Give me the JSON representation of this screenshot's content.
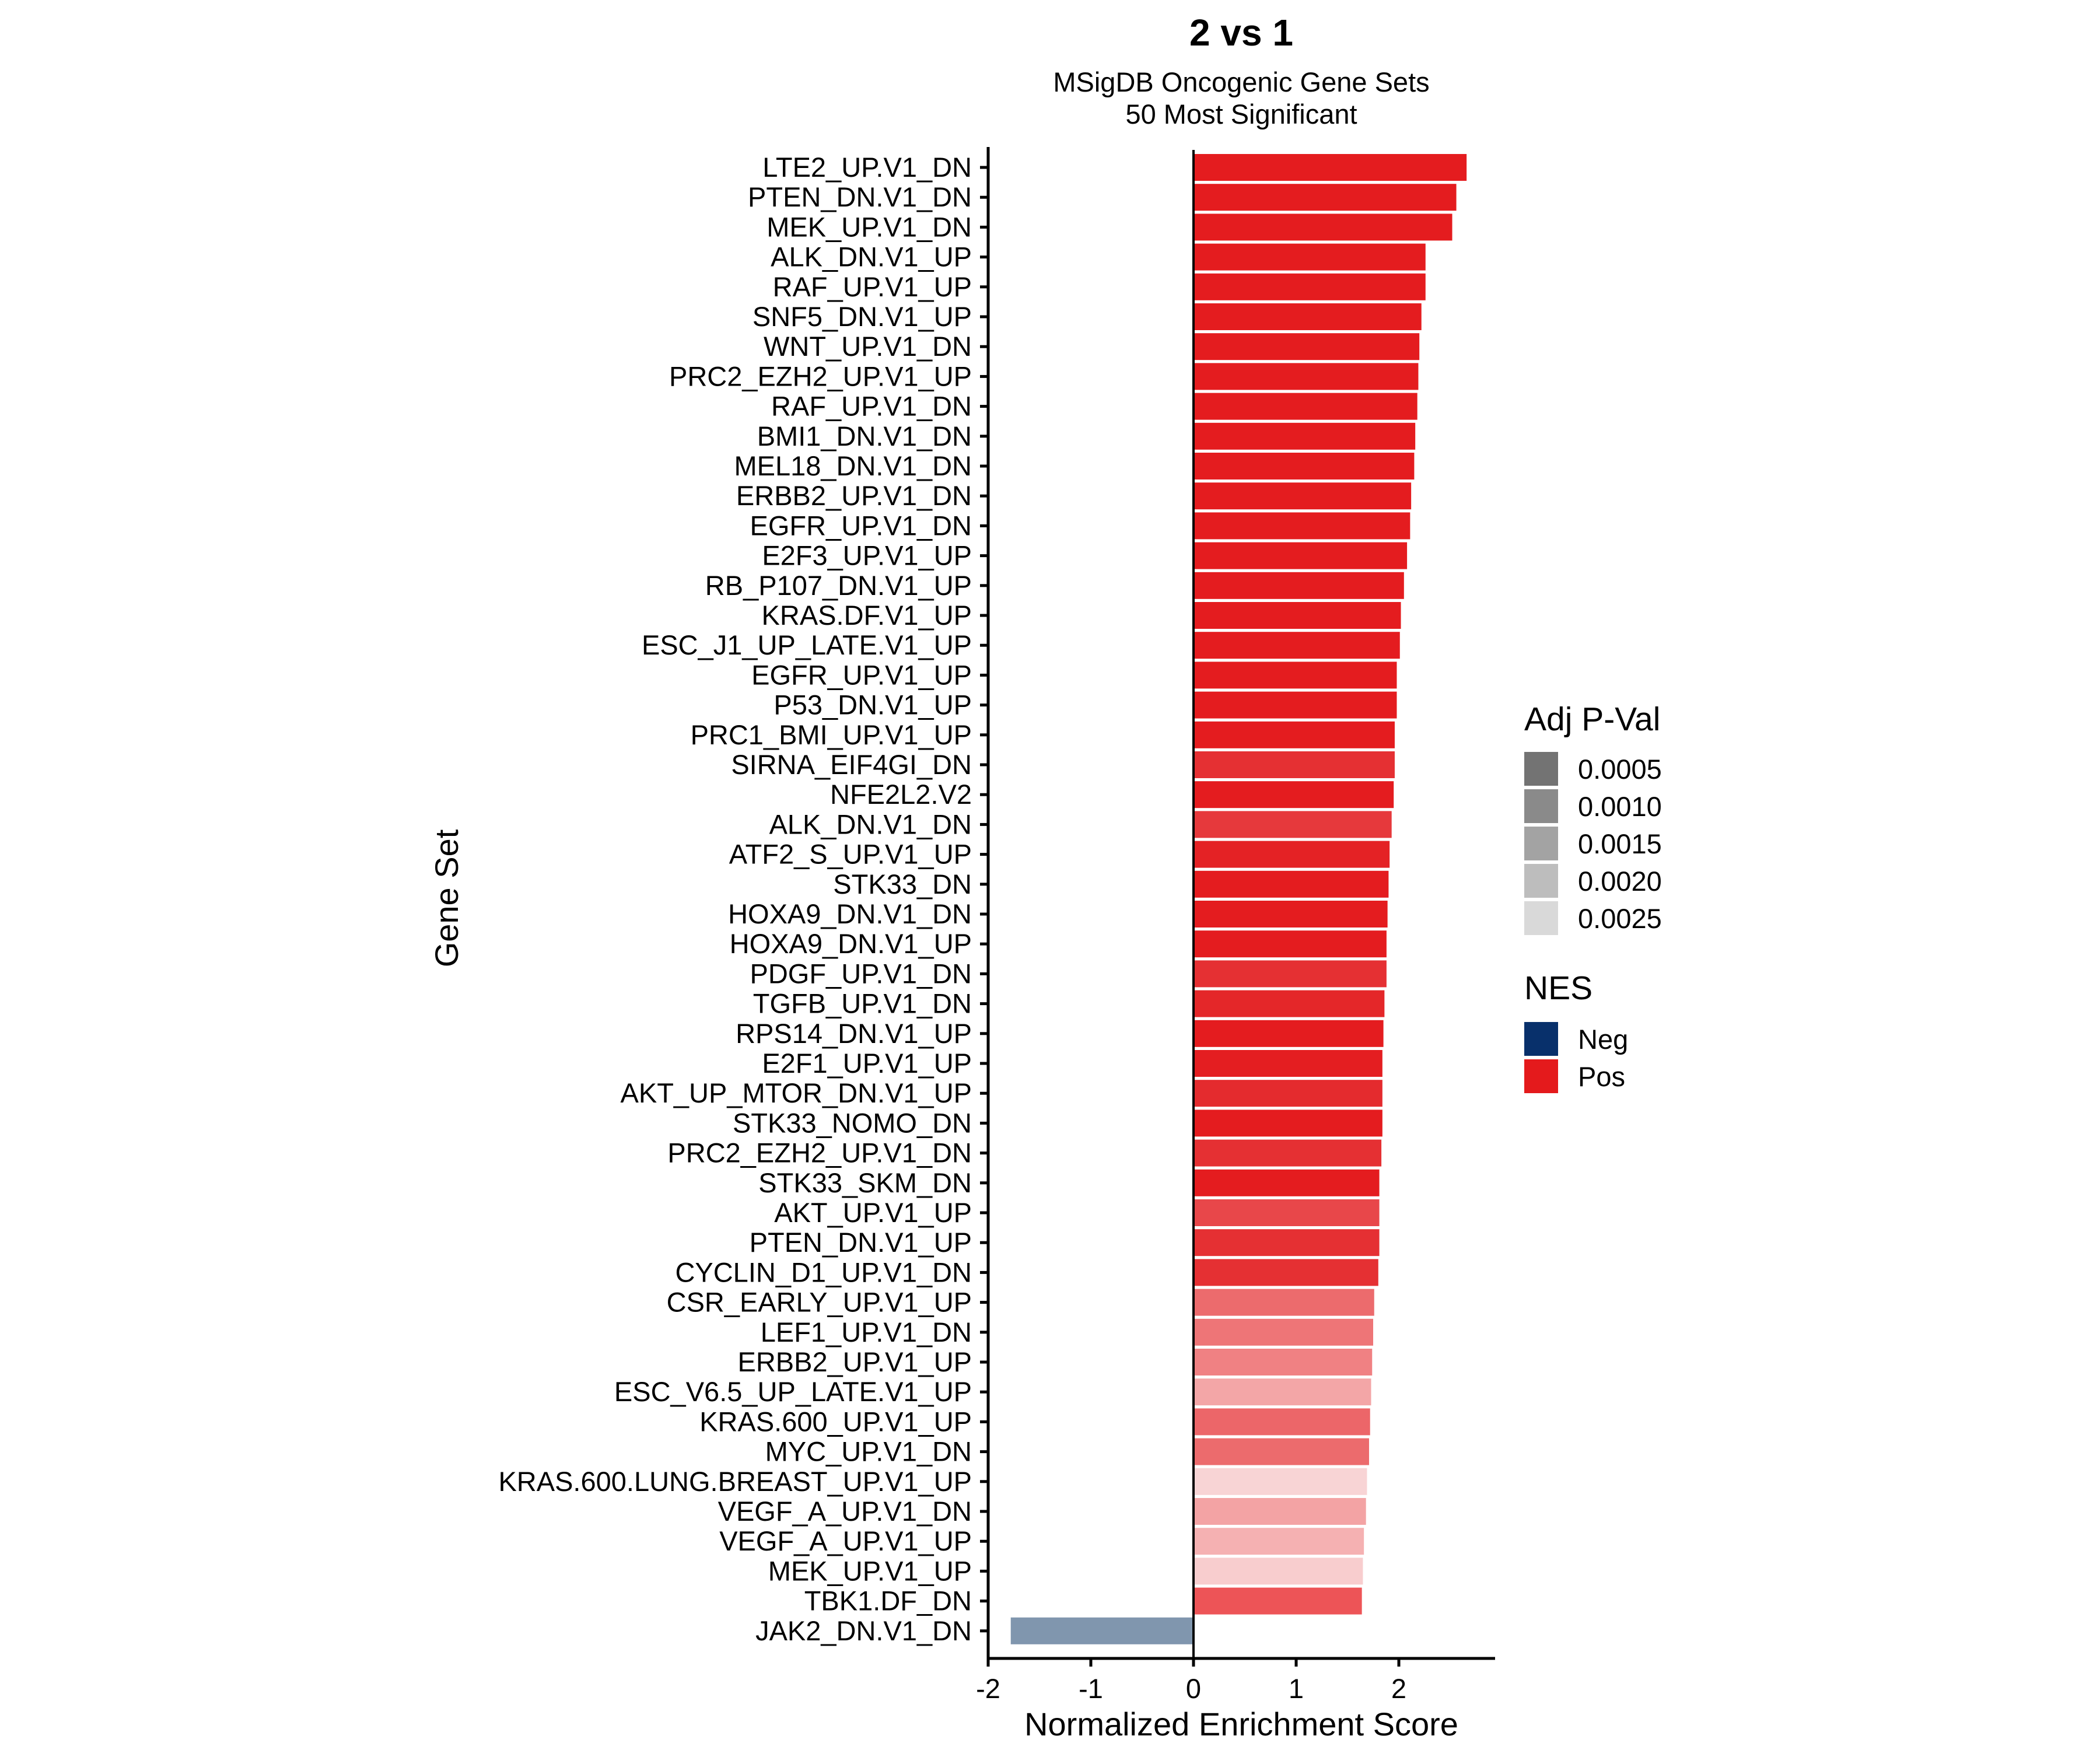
{
  "chart_data": {
    "type": "bar",
    "orientation": "horizontal",
    "title": "2 vs 1",
    "subtitle": [
      "MSigDB Oncogenic Gene Sets",
      "50 Most Significant"
    ],
    "xlabel": "Normalized Enrichment Score",
    "ylabel": "Gene Set",
    "xlim": [
      -2,
      2.9
    ],
    "xticks": [
      -2,
      -1,
      0,
      1,
      2
    ],
    "xtick_labels": [
      "-2",
      "-1",
      "0",
      "1",
      "2"
    ],
    "grid": false,
    "categories": [
      "LTE2_UP.V1_DN",
      "PTEN_DN.V1_DN",
      "MEK_UP.V1_DN",
      "ALK_DN.V1_UP",
      "RAF_UP.V1_UP",
      "SNF5_DN.V1_UP",
      "WNT_UP.V1_DN",
      "PRC2_EZH2_UP.V1_UP",
      "RAF_UP.V1_DN",
      "BMI1_DN.V1_DN",
      "MEL18_DN.V1_DN",
      "ERBB2_UP.V1_DN",
      "EGFR_UP.V1_DN",
      "E2F3_UP.V1_UP",
      "RB_P107_DN.V1_UP",
      "KRAS.DF.V1_UP",
      "ESC_J1_UP_LATE.V1_UP",
      "EGFR_UP.V1_UP",
      "P53_DN.V1_UP",
      "PRC1_BMI_UP.V1_UP",
      "SIRNA_EIF4GI_DN",
      "NFE2L2.V2",
      "ALK_DN.V1_DN",
      "ATF2_S_UP.V1_UP",
      "STK33_DN",
      "HOXA9_DN.V1_DN",
      "HOXA9_DN.V1_UP",
      "PDGF_UP.V1_DN",
      "TGFB_UP.V1_DN",
      "RPS14_DN.V1_UP",
      "E2F1_UP.V1_UP",
      "AKT_UP_MTOR_DN.V1_UP",
      "STK33_NOMO_DN",
      "PRC2_EZH2_UP.V1_DN",
      "STK33_SKM_DN",
      "AKT_UP.V1_UP",
      "PTEN_DN.V1_UP",
      "CYCLIN_D1_UP.V1_DN",
      "CSR_EARLY_UP.V1_UP",
      "LEF1_UP.V1_DN",
      "ERBB2_UP.V1_UP",
      "ESC_V6.5_UP_LATE.V1_UP",
      "KRAS.600_UP.V1_UP",
      "MYC_UP.V1_DN",
      "KRAS.600.LUNG.BREAST_UP.V1_UP",
      "VEGF_A_UP.V1_DN",
      "VEGF_A_UP.V1_UP",
      "MEK_UP.V1_UP",
      "TBK1.DF_DN",
      "JAK2_DN.V1_DN"
    ],
    "values": [
      2.66,
      2.56,
      2.52,
      2.26,
      2.26,
      2.22,
      2.2,
      2.19,
      2.18,
      2.16,
      2.15,
      2.12,
      2.11,
      2.08,
      2.05,
      2.02,
      2.01,
      1.98,
      1.98,
      1.96,
      1.96,
      1.95,
      1.93,
      1.91,
      1.9,
      1.89,
      1.88,
      1.88,
      1.86,
      1.85,
      1.84,
      1.84,
      1.84,
      1.83,
      1.81,
      1.81,
      1.81,
      1.8,
      1.76,
      1.75,
      1.74,
      1.73,
      1.72,
      1.71,
      1.69,
      1.68,
      1.66,
      1.65,
      1.64,
      -1.78
    ],
    "bar_colors": [
      "#e41c1f",
      "#e41c1f",
      "#e41c1f",
      "#e41c1f",
      "#e41c1f",
      "#e41c1f",
      "#e41c1f",
      "#e41c1f",
      "#e41c1f",
      "#e41c1f",
      "#e41c1f",
      "#e41c1f",
      "#e41c1f",
      "#e41c1f",
      "#e41c1f",
      "#e41c1f",
      "#e41c1f",
      "#e41c1f",
      "#e41c1f",
      "#e41c1f",
      "#e53033",
      "#e41c1f",
      "#e6393c",
      "#e42225",
      "#e41c1f",
      "#e41c1f",
      "#e41c1f",
      "#e53033",
      "#e42729",
      "#e41c1f",
      "#e41e21",
      "#e42b2e",
      "#e41c1f",
      "#e53033",
      "#e41c1f",
      "#e8474a",
      "#e53033",
      "#e53033",
      "#ec6b6d",
      "#ee7577",
      "#f08183",
      "#f3a6a7",
      "#ec6669",
      "#ec6b6d",
      "#f8d4d5",
      "#f3a3a4",
      "#f5b1b2",
      "#f8cdce",
      "#ed5457",
      "#8096ae"
    ],
    "legends": [
      {
        "title": "Adj P-Val",
        "placement": "right",
        "entries": [
          {
            "label": "0.0005",
            "color": "#737373"
          },
          {
            "label": "0.0010",
            "color": "#8a8a8a"
          },
          {
            "label": "0.0015",
            "color": "#a3a3a3"
          },
          {
            "label": "0.0020",
            "color": "#bdbdbd"
          },
          {
            "label": "0.0025",
            "color": "#d9d9d9"
          }
        ]
      },
      {
        "title": "NES",
        "placement": "right",
        "entries": [
          {
            "label": "Neg",
            "color": "#08306b"
          },
          {
            "label": "Pos",
            "color": "#e41a1c"
          }
        ]
      }
    ]
  }
}
